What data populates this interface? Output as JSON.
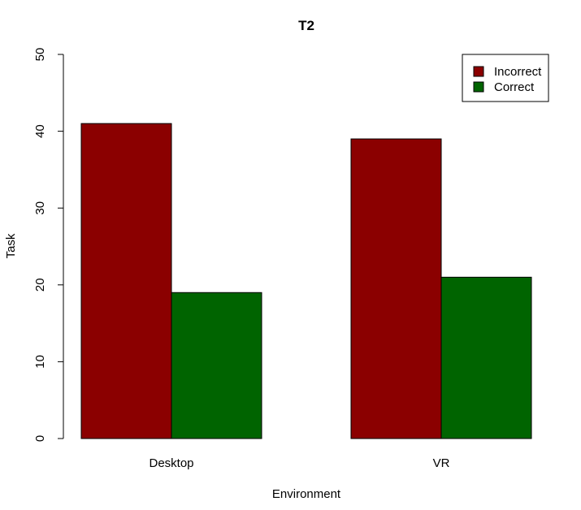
{
  "chart_data": {
    "type": "bar",
    "title": "T2",
    "xlabel": "Environment",
    "ylabel": "Task",
    "categories": [
      "Desktop",
      "VR"
    ],
    "series": [
      {
        "name": "Incorrect",
        "color": "#8b0000",
        "values": [
          41,
          39
        ]
      },
      {
        "name": "Correct",
        "color": "#006400",
        "values": [
          19,
          21
        ]
      }
    ],
    "ylim": [
      0,
      50
    ],
    "yticks": [
      "0",
      "10",
      "20",
      "30",
      "40",
      "50"
    ],
    "grid": false,
    "legend_position": "top-right"
  }
}
